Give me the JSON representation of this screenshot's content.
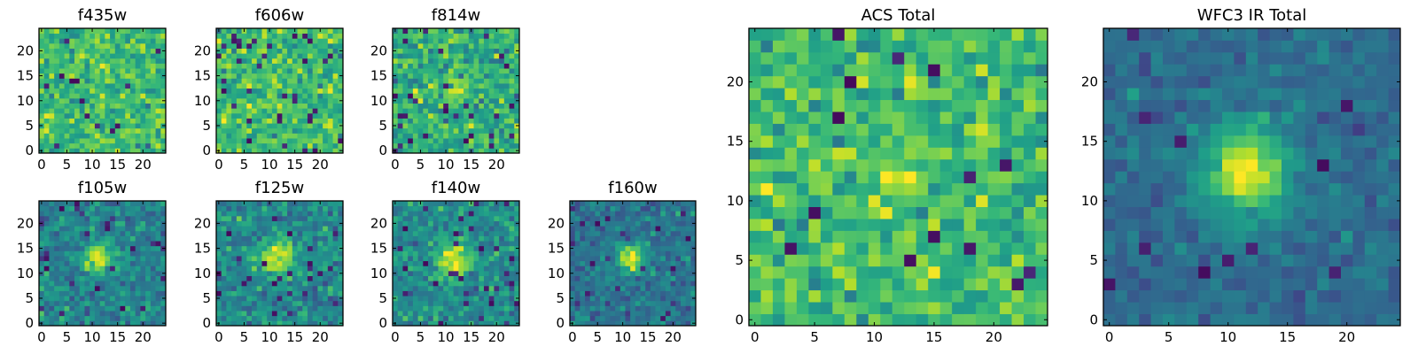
{
  "chart_data": {
    "type": "heatmap",
    "colormap": [
      "#440154",
      "#482878",
      "#3e4989",
      "#31688e",
      "#26828e",
      "#1f9e89",
      "#35b779",
      "#6ece58",
      "#b5de2b",
      "#fde725"
    ],
    "xlim": [
      -0.5,
      24.5
    ],
    "ylim": [
      -0.5,
      24.5
    ],
    "grid_size": 25,
    "panels": [
      {
        "title": "f435w",
        "xticks": [
          0,
          5,
          10,
          15,
          20
        ],
        "yticks": [
          0,
          5,
          10,
          15,
          20
        ],
        "model": {
          "background": 0.68,
          "noise": 0.1,
          "peak": 0.0,
          "center": [
            12,
            12
          ],
          "sigma": 2.5,
          "outlier_rate": 0.03,
          "seed": 11
        }
      },
      {
        "title": "f606w",
        "xticks": [
          0,
          5,
          10,
          15,
          20
        ],
        "yticks": [
          0,
          5,
          10,
          15,
          20
        ],
        "model": {
          "background": 0.66,
          "noise": 0.11,
          "peak": 0.08,
          "center": [
            11,
            12
          ],
          "sigma": 4,
          "outlier_rate": 0.035,
          "seed": 23
        }
      },
      {
        "title": "f814w",
        "xticks": [
          0,
          5,
          10,
          15,
          20
        ],
        "yticks": [
          0,
          5,
          10,
          15,
          20
        ],
        "model": {
          "background": 0.62,
          "noise": 0.12,
          "peak": 0.25,
          "center": [
            11.5,
            12.5
          ],
          "sigma": 2.2,
          "outlier_rate": 0.03,
          "seed": 37
        }
      },
      {
        "title": "f105w",
        "xticks": [
          0,
          5,
          10,
          15,
          20
        ],
        "yticks": [
          0,
          5,
          10,
          15,
          20
        ],
        "model": {
          "background": 0.45,
          "noise": 0.1,
          "peak": 0.5,
          "center": [
            11.5,
            13
          ],
          "sigma": 2.2,
          "outlier_rate": 0.03,
          "seed": 41
        }
      },
      {
        "title": "f125w",
        "xticks": [
          0,
          5,
          10,
          15,
          20
        ],
        "yticks": [
          0,
          5,
          10,
          15,
          20
        ],
        "model": {
          "background": 0.47,
          "noise": 0.1,
          "peak": 0.5,
          "center": [
            11.5,
            13
          ],
          "sigma": 2.4,
          "outlier_rate": 0.03,
          "seed": 53
        }
      },
      {
        "title": "f140w",
        "xticks": [
          0,
          5,
          10,
          15,
          20
        ],
        "yticks": [
          0,
          5,
          10,
          15,
          20
        ],
        "model": {
          "background": 0.48,
          "noise": 0.1,
          "peak": 0.5,
          "center": [
            11.5,
            12.5
          ],
          "sigma": 2.5,
          "outlier_rate": 0.035,
          "seed": 67
        }
      },
      {
        "title": "f160w",
        "xticks": [
          0,
          5,
          10,
          15,
          20
        ],
        "yticks": [
          0,
          5,
          10,
          15,
          20
        ],
        "model": {
          "background": 0.38,
          "noise": 0.08,
          "peak": 0.6,
          "center": [
            11.5,
            13
          ],
          "sigma": 1.9,
          "outlier_rate": 0.03,
          "seed": 79
        }
      },
      {
        "title": "ACS Total",
        "xticks": [
          0,
          5,
          10,
          15,
          20
        ],
        "yticks": [
          0,
          5,
          10,
          15,
          20
        ],
        "model": {
          "background": 0.68,
          "noise": 0.11,
          "peak": 0.06,
          "center": [
            12,
            12
          ],
          "sigma": 3,
          "outlier_rate": 0.025,
          "seed": 97
        }
      },
      {
        "title": "WFC3 IR Total",
        "xticks": [
          0,
          5,
          10,
          15,
          20
        ],
        "yticks": [
          0,
          5,
          10,
          15,
          20
        ],
        "model": {
          "background": 0.36,
          "noise": 0.06,
          "peak": 0.62,
          "center": [
            11.5,
            12.5
          ],
          "sigma": 2.5,
          "outlier_rate": 0.02,
          "seed": 101
        }
      }
    ]
  }
}
